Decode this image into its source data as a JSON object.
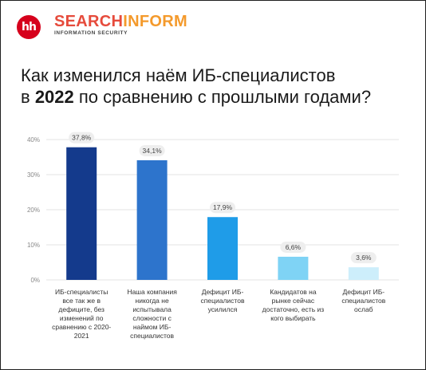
{
  "logos": {
    "hh": "hh",
    "brand_part1": "SEARCH",
    "brand_part2": "INFORM",
    "brand_sub": "INFORMATION SECURITY"
  },
  "title": {
    "line1": "Как изменился наём ИБ-специалистов",
    "line2_pre": "в ",
    "line2_bold": "2022",
    "line2_post": " по сравнению с прошлыми годами?"
  },
  "chart_data": {
    "type": "bar",
    "categories": [
      "ИБ-специалисты все так же в дефиците, без изменений по сравнению с 2020-2021",
      "Наша компания никогда не испытывала сложности с наймом ИБ-специалистов",
      "Дефицит ИБ-специалистов усилился",
      "Кандидатов на рынке сейчас достаточно, есть из кого выбирать",
      "Дефицит ИБ-специалистов ослаб"
    ],
    "values": [
      37.8,
      34.1,
      17.9,
      6.6,
      3.6
    ],
    "value_labels": [
      "37,8%",
      "34,1%",
      "17,9%",
      "6,6%",
      "3,6%"
    ],
    "colors": [
      "#143a8c",
      "#2d74cc",
      "#1f9ce8",
      "#7fd3f5",
      "#cdeefb"
    ],
    "ylim": [
      0,
      40
    ],
    "yticks": [
      0,
      10,
      20,
      30,
      40
    ],
    "ytick_labels": [
      "0%",
      "10%",
      "20%",
      "30%",
      "40%"
    ],
    "grid": true
  }
}
